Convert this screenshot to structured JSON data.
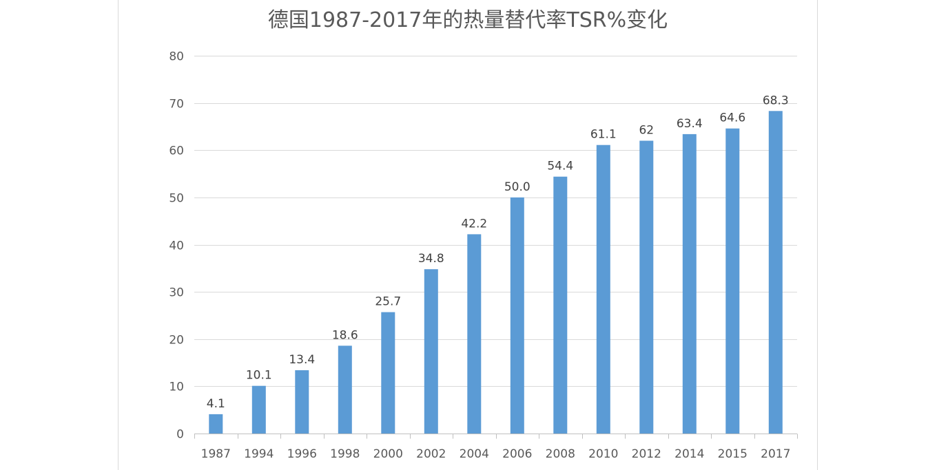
{
  "chart_data": {
    "type": "bar",
    "title": "德国1987-2017年的热量替代率TSR%变化",
    "xlabel": "",
    "ylabel": "",
    "categories": [
      "1987",
      "1994",
      "1996",
      "1998",
      "2000",
      "2002",
      "2004",
      "2006",
      "2008",
      "2010",
      "2012",
      "2014",
      "2015",
      "2017"
    ],
    "values": [
      4.1,
      10.1,
      13.4,
      18.6,
      25.7,
      34.8,
      42.2,
      50.0,
      54.4,
      61.1,
      62,
      63.4,
      64.6,
      68.3
    ],
    "value_labels": [
      "4.1",
      "10.1",
      "13.4",
      "18.6",
      "25.7",
      "34.8",
      "42.2",
      "50.0",
      "54.4",
      "61.1",
      "62",
      "63.4",
      "64.6",
      "68.3"
    ],
    "ylim": [
      0,
      80
    ],
    "yticks": [
      0,
      10,
      20,
      30,
      40,
      50,
      60,
      70,
      80
    ],
    "grid": true,
    "legend": "none",
    "colors": {
      "bar": "#5b9bd5",
      "grid": "#d9d9d9",
      "axis": "#bfbfbf",
      "text": "#595959"
    }
  }
}
